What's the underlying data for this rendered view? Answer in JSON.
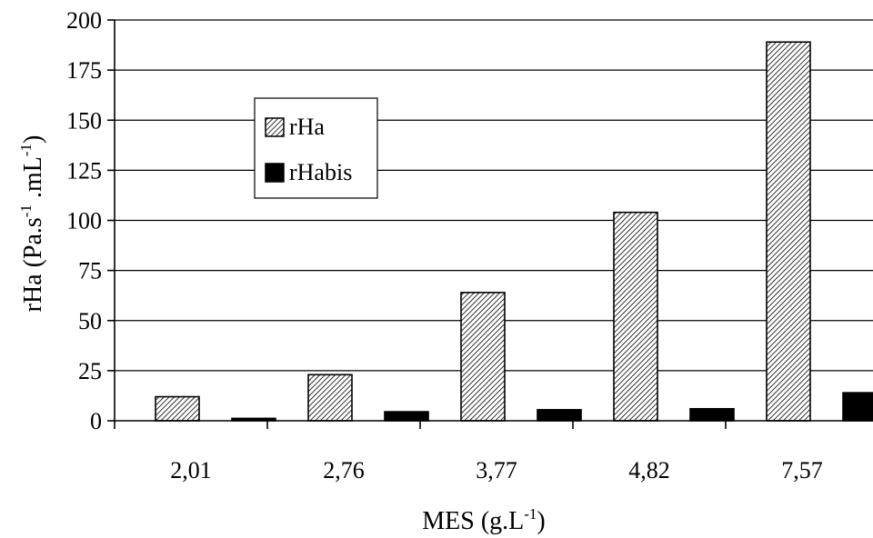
{
  "chart_data": {
    "type": "bar",
    "categories": [
      "2,01",
      "2,76",
      "3,77",
      "4,82",
      "7,57"
    ],
    "series": [
      {
        "name": "rHa",
        "values": [
          12,
          23,
          64,
          104,
          189
        ],
        "pattern": "diagonal-hatch"
      },
      {
        "name": "rHabis",
        "values": [
          1.2,
          4.5,
          5.5,
          6,
          14
        ],
        "color": "#000000"
      }
    ],
    "ylim": [
      0,
      200
    ],
    "yticks": [
      "0",
      "25",
      "50",
      "75",
      "100",
      "125",
      "150",
      "175",
      "200"
    ],
    "ytick_values": [
      0,
      25,
      50,
      75,
      100,
      125,
      150,
      175,
      200
    ],
    "ylabel": {
      "main": "rHa (Pa.s",
      "sup1": "-1",
      "mid": " .mL",
      "sup2": "-1",
      "end": ")"
    },
    "xlabel": {
      "main": "MES (g.L",
      "sup": "-1",
      "end": ")"
    },
    "grid": true,
    "legend_position": "upper-left",
    "colors": {
      "grid": "#000000",
      "axis": "#000000",
      "bar_outline": "#000000"
    }
  }
}
